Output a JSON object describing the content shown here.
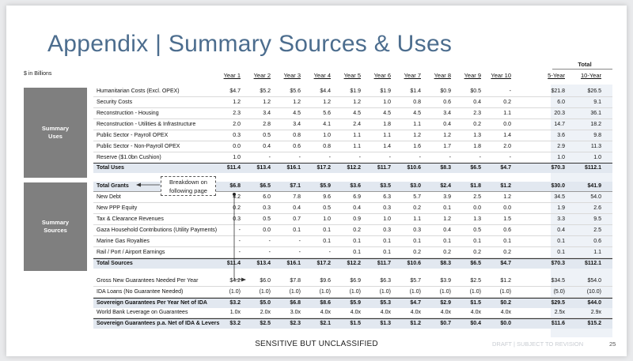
{
  "title": "Appendix | Summary Sources & Uses",
  "units": "$ in Billions",
  "total_header": "Total",
  "columns": [
    "Year 1",
    "Year 2",
    "Year 3",
    "Year 4",
    "Year 5",
    "Year 6",
    "Year 7",
    "Year 8",
    "Year 9",
    "Year 10",
    "5-Year",
    "10-Year"
  ],
  "sections": {
    "uses": "Summary Uses",
    "sources": "Summary Sources"
  },
  "callout": "Breakdown on following page",
  "rows": [
    {
      "label": "Humanitarian Costs (Excl. OPEX)",
      "values": [
        "$4.7",
        "$5.2",
        "$5.6",
        "$4.4",
        "$1.9",
        "$1.9",
        "$1.4",
        "$0.9",
        "$0.5",
        "-",
        "$21.8",
        "$26.5"
      ]
    },
    {
      "label": "Security Costs",
      "values": [
        "1.2",
        "1.2",
        "1.2",
        "1.2",
        "1.2",
        "1.0",
        "0.8",
        "0.6",
        "0.4",
        "0.2",
        "6.0",
        "9.1"
      ]
    },
    {
      "label": "Reconstruction - Housing",
      "values": [
        "2.3",
        "3.4",
        "4.5",
        "5.6",
        "4.5",
        "4.5",
        "4.5",
        "3.4",
        "2.3",
        "1.1",
        "20.3",
        "36.1"
      ]
    },
    {
      "label": "Reconstruction - Utilities & Infrastructure",
      "values": [
        "2.0",
        "2.8",
        "3.4",
        "4.1",
        "2.4",
        "1.8",
        "1.1",
        "0.4",
        "0.2",
        "0.0",
        "14.7",
        "18.2"
      ]
    },
    {
      "label": "Public Sector - Payroll OPEX",
      "values": [
        "0.3",
        "0.5",
        "0.8",
        "1.0",
        "1.1",
        "1.1",
        "1.2",
        "1.2",
        "1.3",
        "1.4",
        "3.6",
        "9.8"
      ]
    },
    {
      "label": "Public Sector - Non-Payroll OPEX",
      "values": [
        "0.0",
        "0.4",
        "0.6",
        "0.8",
        "1.1",
        "1.4",
        "1.6",
        "1.7",
        "1.8",
        "2.0",
        "2.9",
        "11.3"
      ]
    },
    {
      "label": "Reserve ($1.0bn Cushion)",
      "values": [
        "1.0",
        "-",
        "-",
        "-",
        "-",
        "-",
        "-",
        "-",
        "-",
        "-",
        "1.0",
        "1.0"
      ]
    },
    {
      "label": "Total Uses",
      "values": [
        "$11.4",
        "$13.4",
        "$16.1",
        "$17.2",
        "$12.2",
        "$11.7",
        "$10.6",
        "$8.3",
        "$6.5",
        "$4.7",
        "$70.3",
        "$112.1"
      ]
    },
    {
      "label": "Total Grants",
      "values": [
        "$6.8",
        "$6.5",
        "$7.1",
        "$5.9",
        "$3.6",
        "$3.5",
        "$3.0",
        "$2.4",
        "$1.8",
        "$1.2",
        "$30.0",
        "$41.9"
      ]
    },
    {
      "label": "New Debt",
      "values": [
        "4.2",
        "6.0",
        "7.8",
        "9.6",
        "6.9",
        "6.3",
        "5.7",
        "3.9",
        "2.5",
        "1.2",
        "34.5",
        "54.0"
      ]
    },
    {
      "label": "New PPP Equity",
      "values": [
        "0.2",
        "0.3",
        "0.4",
        "0.5",
        "0.4",
        "0.3",
        "0.2",
        "0.1",
        "0.0",
        "0.0",
        "1.9",
        "2.6"
      ]
    },
    {
      "label": "Tax & Clearance Revenues",
      "values": [
        "0.3",
        "0.5",
        "0.7",
        "1.0",
        "0.9",
        "1.0",
        "1.1",
        "1.2",
        "1.3",
        "1.5",
        "3.3",
        "9.5"
      ]
    },
    {
      "label": "Gaza Household Contributions (Utility Payments)",
      "values": [
        "-",
        "0.0",
        "0.1",
        "0.1",
        "0.2",
        "0.3",
        "0.3",
        "0.4",
        "0.5",
        "0.6",
        "0.4",
        "2.5"
      ]
    },
    {
      "label": "Marine Gas Royalties",
      "values": [
        "-",
        "-",
        "-",
        "0.1",
        "0.1",
        "0.1",
        "0.1",
        "0.1",
        "0.1",
        "0.1",
        "0.1",
        "0.6"
      ]
    },
    {
      "label": "Rail / Port / Airport Earnings",
      "values": [
        "-",
        "-",
        "-",
        "-",
        "0.1",
        "0.1",
        "0.2",
        "0.2",
        "0.2",
        "0.2",
        "0.1",
        "1.1"
      ]
    },
    {
      "label": "Total Sources",
      "values": [
        "$11.4",
        "$13.4",
        "$16.1",
        "$17.2",
        "$12.2",
        "$11.7",
        "$10.6",
        "$8.3",
        "$6.5",
        "$4.7",
        "$70.3",
        "$112.1"
      ]
    },
    {
      "label": "Gross New Guarantees Needed Per Year",
      "values": [
        "$4.2",
        "$6.0",
        "$7.8",
        "$9.6",
        "$6.9",
        "$6.3",
        "$5.7",
        "$3.9",
        "$2.5",
        "$1.2",
        "$34.5",
        "$54.0"
      ]
    },
    {
      "label": "IDA Loans (No Guarantee Needed)",
      "values": [
        "(1.0)",
        "(1.0)",
        "(1.0)",
        "(1.0)",
        "(1.0)",
        "(1.0)",
        "(1.0)",
        "(1.0)",
        "(1.0)",
        "(1.0)",
        "(5.0)",
        "(10.0)"
      ]
    },
    {
      "label": "Sovereign Guarantees Per Year Net of IDA",
      "values": [
        "$3.2",
        "$5.0",
        "$6.8",
        "$8.6",
        "$5.9",
        "$5.3",
        "$4.7",
        "$2.9",
        "$1.5",
        "$0.2",
        "$29.5",
        "$44.0"
      ]
    },
    {
      "label": "World Bank Leverage on Guarantees",
      "values": [
        "1.0x",
        "2.0x",
        "3.0x",
        "4.0x",
        "4.0x",
        "4.0x",
        "4.0x",
        "4.0x",
        "4.0x",
        "4.0x",
        "2.5x",
        "2.9x"
      ]
    },
    {
      "label": "Sovereign Guarantees p.a. Net of IDA & Levers",
      "values": [
        "$3.2",
        "$2.5",
        "$2.3",
        "$2.1",
        "$1.5",
        "$1.3",
        "$1.2",
        "$0.7",
        "$0.4",
        "$0.0",
        "$11.6",
        "$15.2"
      ]
    }
  ],
  "footer": "SENSITIVE BUT UNCLASSIFIED",
  "draft": "DRAFT | SUBJECT TO REVISION",
  "page_number": "25"
}
